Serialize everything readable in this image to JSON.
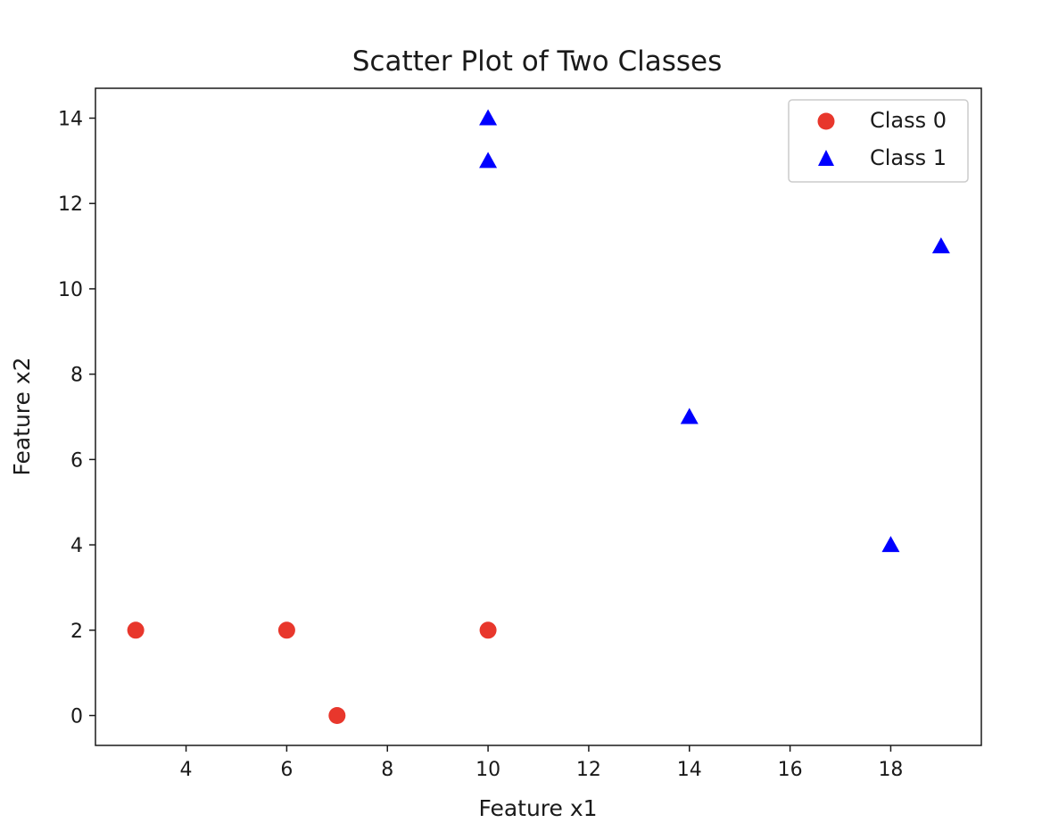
{
  "chart_data": {
    "type": "scatter",
    "title": "Scatter Plot of Two Classes",
    "xlabel": "Feature x1",
    "ylabel": "Feature x2",
    "xlim": [
      2.2,
      19.8
    ],
    "ylim": [
      -0.7,
      14.7
    ],
    "xticks": [
      4,
      6,
      8,
      10,
      12,
      14,
      16,
      18
    ],
    "yticks": [
      0,
      2,
      4,
      6,
      8,
      10,
      12,
      14
    ],
    "grid": false,
    "legend_position": "top-right",
    "series": [
      {
        "name": "Class 0",
        "marker": "circle",
        "color": "#e8372c",
        "points": [
          {
            "x": 3,
            "y": 2
          },
          {
            "x": 6,
            "y": 2
          },
          {
            "x": 7,
            "y": 0
          },
          {
            "x": 10,
            "y": 2
          }
        ]
      },
      {
        "name": "Class 1",
        "marker": "triangle",
        "color": "#0000ff",
        "points": [
          {
            "x": 10,
            "y": 14
          },
          {
            "x": 10,
            "y": 13
          },
          {
            "x": 19,
            "y": 11
          },
          {
            "x": 14,
            "y": 7
          },
          {
            "x": 18,
            "y": 4
          }
        ]
      }
    ]
  }
}
